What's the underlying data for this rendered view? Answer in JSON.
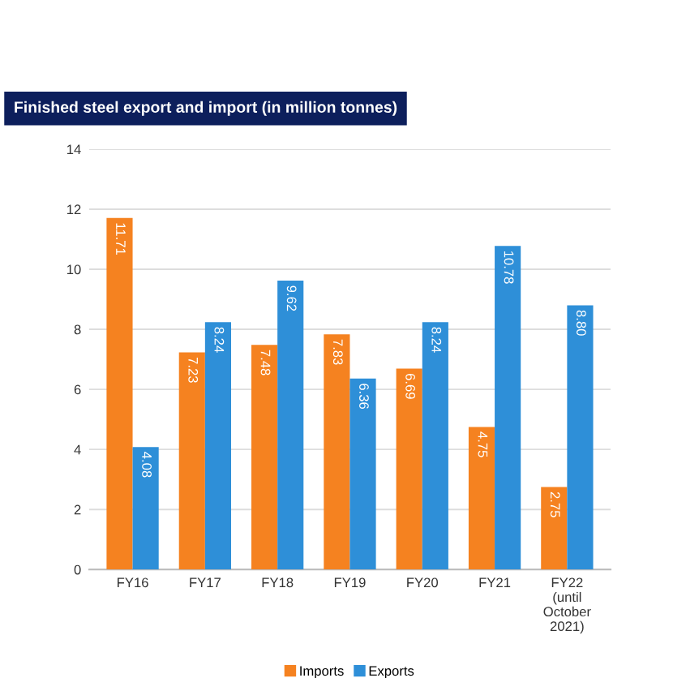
{
  "chart_data": {
    "type": "bar",
    "title": "Finished steel export and import (in million tonnes)",
    "categories": [
      "FY16",
      "FY17",
      "FY18",
      "FY19",
      "FY20",
      "FY21",
      "FY22\n(until\nOctober\n2021)"
    ],
    "series": [
      {
        "name": "Imports",
        "color": "#f58220",
        "values": [
          11.71,
          7.23,
          7.48,
          7.83,
          6.69,
          4.75,
          2.75
        ]
      },
      {
        "name": "Exports",
        "color": "#2e8fd8",
        "values": [
          4.08,
          8.24,
          9.62,
          6.36,
          8.24,
          10.78,
          8.8
        ]
      }
    ],
    "value_labels": [
      [
        "11.71",
        "7.23",
        "7.48",
        "7.83",
        "6.69",
        "4.75",
        "2.75"
      ],
      [
        "4.08",
        "8.24",
        "9.62",
        "6.36",
        "8.24",
        "10.78",
        "8.80"
      ]
    ],
    "ylim": [
      0,
      14
    ],
    "yticks": [
      0,
      2,
      4,
      6,
      8,
      10,
      12,
      14
    ],
    "grid": "y",
    "legend": "bottom"
  }
}
